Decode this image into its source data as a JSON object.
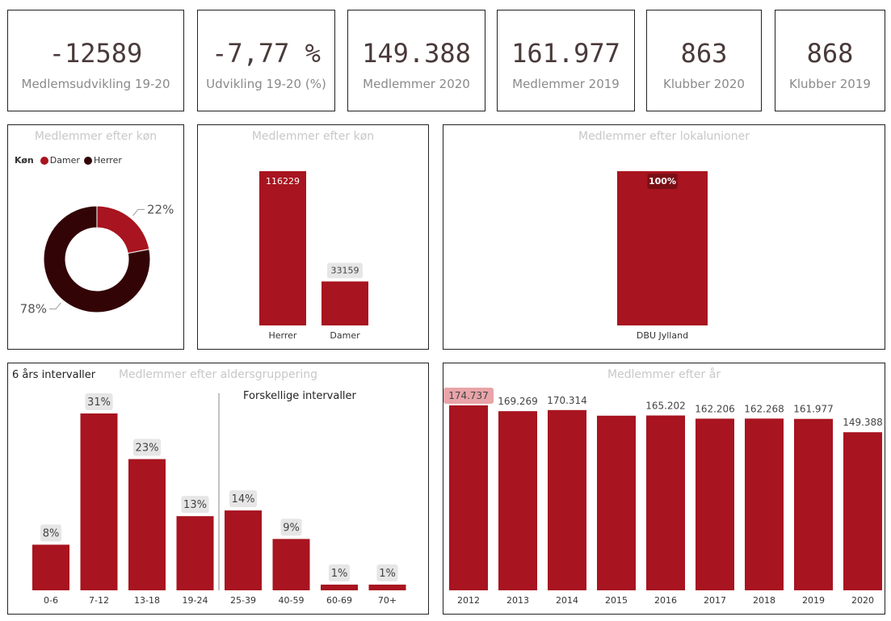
{
  "colors": {
    "primary": "#a8141f",
    "dark": "#330406",
    "label_bg": "#e6e6e6",
    "highlight": "#e8a4a8"
  },
  "kpis": [
    {
      "value": "-12589",
      "label": "Medlemsudvikling 19-20"
    },
    {
      "value": "-7,77 %",
      "label": "Udvikling 19-20 (%)"
    },
    {
      "value": "149.388",
      "label": "Medlemmer 2020"
    },
    {
      "value": "161.977",
      "label": "Medlemmer 2019"
    },
    {
      "value": "863",
      "label": "Klubber 2020"
    },
    {
      "value": "868",
      "label": "Klubber 2019"
    }
  ],
  "panels": {
    "donut": {
      "title": "Medlemmer efter køn",
      "legend_title": "Køn"
    },
    "gender_bar": {
      "title": "Medlemmer efter køn"
    },
    "union_bar": {
      "title": "Medlemmer efter lokalunioner"
    },
    "age_bar": {
      "title": "Medlemmer efter aldersgruppering",
      "note_left": "6 års intervaller",
      "note_right": "Forskellige intervaller"
    },
    "year_bar": {
      "title": "Medlemmer efter år"
    }
  },
  "chart_data": [
    {
      "type": "pie",
      "title": "Medlemmer efter køn",
      "legend_title": "Køn",
      "categories": [
        "Damer",
        "Herrer"
      ],
      "values": [
        22,
        78
      ],
      "labels": [
        "22%",
        "78%"
      ]
    },
    {
      "type": "bar",
      "title": "Medlemmer efter køn",
      "categories": [
        "Herrer",
        "Damer"
      ],
      "values": [
        116229,
        33159
      ],
      "labels": [
        "116229",
        "33159"
      ]
    },
    {
      "type": "bar",
      "title": "Medlemmer efter lokalunioner",
      "categories": [
        "DBU Jylland"
      ],
      "values": [
        100
      ],
      "labels": [
        "100%"
      ]
    },
    {
      "type": "bar",
      "title": "Medlemmer efter aldersgruppering",
      "categories": [
        "0-6",
        "7-12",
        "13-18",
        "19-24",
        "25-39",
        "40-59",
        "60-69",
        "70+"
      ],
      "values": [
        8,
        31,
        23,
        13,
        14,
        9,
        1,
        1
      ],
      "labels": [
        "8%",
        "31%",
        "23%",
        "13%",
        "14%",
        "9%",
        "1%",
        "1%"
      ]
    },
    {
      "type": "bar",
      "title": "Medlemmer efter år",
      "categories": [
        "2012",
        "2013",
        "2014",
        "2015",
        "2016",
        "2017",
        "2018",
        "2019",
        "2020"
      ],
      "values": [
        174737,
        169269,
        170314,
        165000,
        165202,
        162206,
        162268,
        161977,
        149388
      ],
      "labels": [
        "174.737",
        "169.269",
        "170.314",
        "",
        "165.202",
        "162.206",
        "162.268",
        "161.977",
        "149.388"
      ]
    }
  ]
}
